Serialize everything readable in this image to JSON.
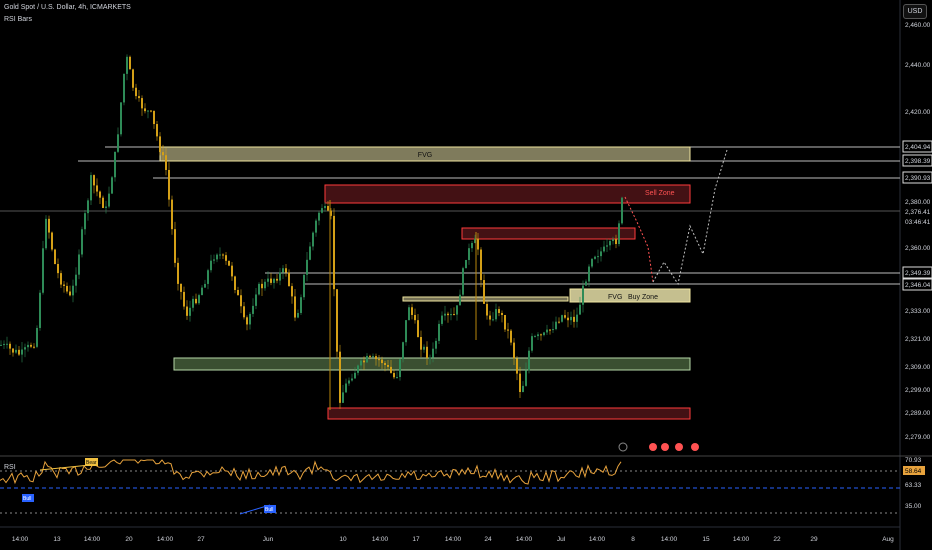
{
  "header": {
    "symbol_title": "Gold Spot / U.S. Dollar, 4h, ICMARKETS",
    "indicator": "RSI Bars",
    "currency": "USD"
  },
  "colors": {
    "background": "#000000",
    "bull": "#2e8b57",
    "bear": "#d4a017",
    "fvg_zone": "#e8e0a8",
    "sell_zone": "#ff3b3b",
    "buy_zone": "#e8e0a8",
    "green_zone": "#b6d7a8",
    "rsi_line": "#e8a33d",
    "rsi_mid": "#2962ff"
  },
  "price_axis": {
    "ticks": [
      "2,440.00",
      "2,420.00",
      "2,360.00",
      "2,333.00",
      "2,321.00",
      "2,309.00",
      "2,299.00",
      "2,289.00",
      "2,279.00"
    ],
    "labels": [
      {
        "text": "2,404.94",
        "style": "box"
      },
      {
        "text": "2,398.39",
        "style": "box"
      },
      {
        "text": "2,390.93",
        "style": "box"
      },
      {
        "text": "2,380.00",
        "style": "plain"
      },
      {
        "text": "2,376.41",
        "style": "plain"
      },
      {
        "text": "03:46:41",
        "style": "plain"
      },
      {
        "text": "2,349.39",
        "style": "box"
      },
      {
        "text": "2,346.04",
        "style": "box"
      }
    ],
    "top_label": "2,460.00"
  },
  "zones": {
    "fvg_top_label": "FVG",
    "sell_zone_label": "Sell Zone",
    "fvg_bottom_label": "FVG",
    "buy_zone_label": "Buy Zone"
  },
  "rsi": {
    "label": "RSI",
    "axis_ticks": [
      "70.93",
      "63.33",
      "35.00"
    ],
    "current_value": "58.64",
    "bear_tag": "Bear",
    "bull_tags": [
      "Bull",
      "Bull"
    ]
  },
  "time_axis": {
    "ticks": [
      "14:00",
      "13",
      "14:00",
      "20",
      "14:00",
      "27",
      "Jun",
      "10",
      "14:00",
      "17",
      "14:00",
      "24",
      "14:00",
      "Jul",
      "14:00",
      "8",
      "14:00",
      "15",
      "14:00",
      "22",
      "29",
      "Aug"
    ]
  }
}
